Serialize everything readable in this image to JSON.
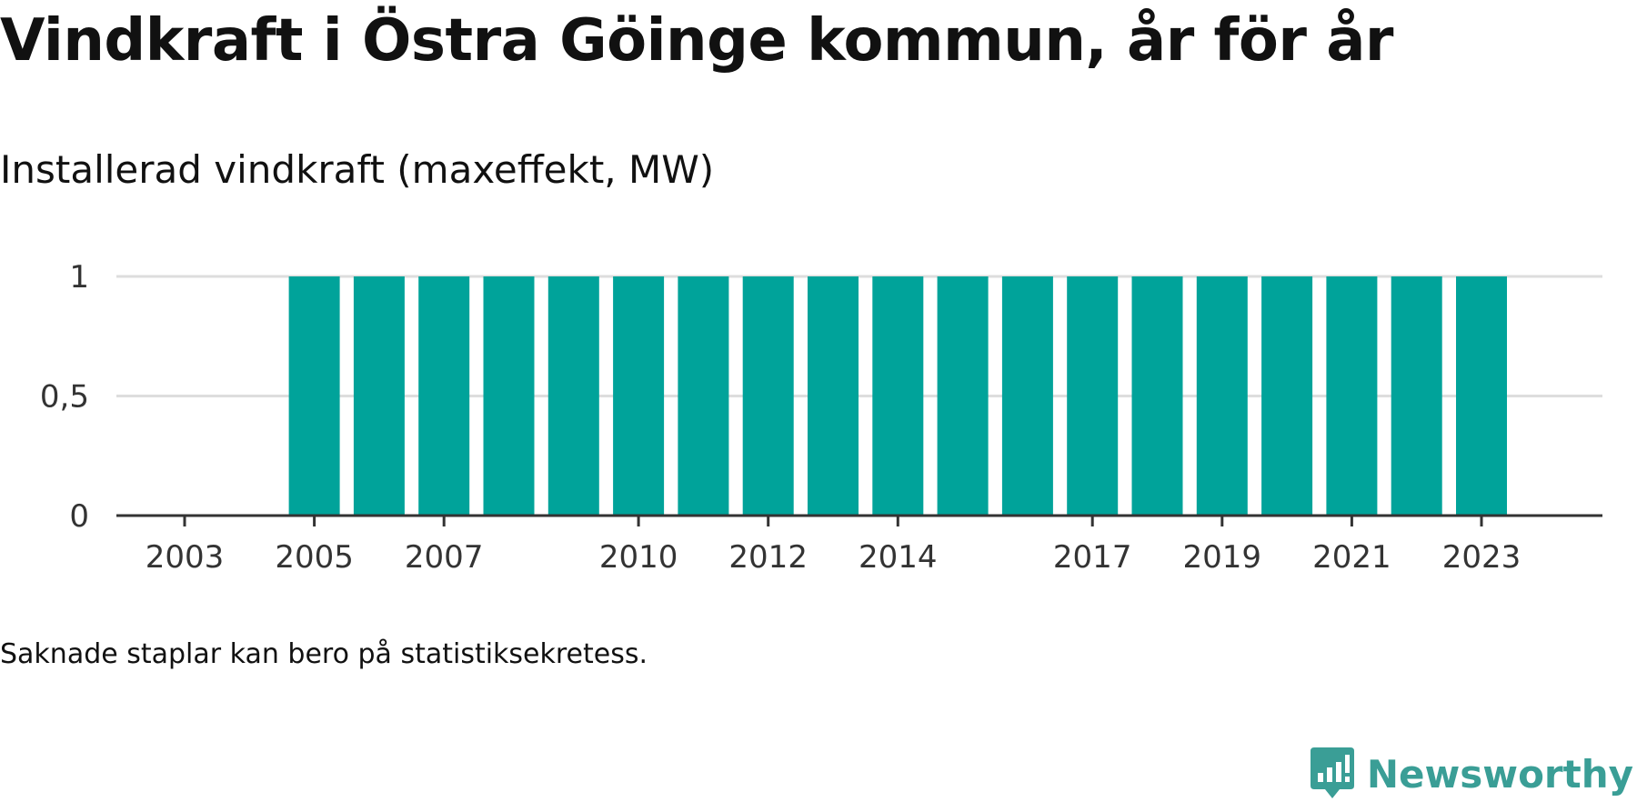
{
  "title": "Vindkraft i Östra Göinge kommun, år för år",
  "subtitle": "Installerad vindkraft (maxeffekt, MW)",
  "note": "Saknade staplar kan bero på statistiksekretess.",
  "brand": {
    "name": "Newsworthy",
    "icon": "newsworthy-logo-icon",
    "color": "#3a9e96"
  },
  "colors": {
    "bar": "#00a39a",
    "grid": "#dddddd",
    "axis": "#333333"
  },
  "chart_data": {
    "type": "bar",
    "categories": [
      "2003",
      "2004",
      "2005",
      "2006",
      "2007",
      "2008",
      "2009",
      "2010",
      "2011",
      "2012",
      "2013",
      "2014",
      "2015",
      "2016",
      "2017",
      "2018",
      "2019",
      "2020",
      "2021",
      "2022",
      "2023"
    ],
    "values": [
      0,
      0,
      1,
      1,
      1,
      1,
      1,
      1,
      1,
      1,
      1,
      1,
      1,
      1,
      1,
      1,
      1,
      1,
      1,
      1,
      1
    ],
    "xticks": [
      "2003",
      "2005",
      "2007",
      "2010",
      "2012",
      "2014",
      "2017",
      "2019",
      "2021",
      "2023"
    ],
    "yticks": [
      0,
      0.5,
      1
    ],
    "ytick_labels": [
      "0",
      "0,5",
      "1"
    ],
    "ylim": [
      0,
      1
    ],
    "title": "Vindkraft i Östra Göinge kommun, år för år",
    "ylabel": "Installerad vindkraft (maxeffekt, MW)",
    "xlabel": "",
    "grid": true,
    "legend": "none"
  }
}
